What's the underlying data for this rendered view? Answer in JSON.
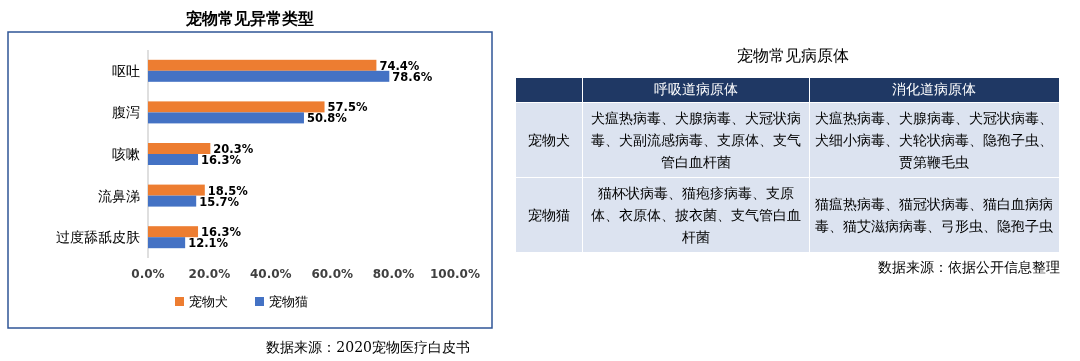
{
  "chart_data": [
    {
      "type": "bar",
      "orientation": "horizontal",
      "title": "宠物常见异常类型",
      "categories": [
        "呕吐",
        "腹泻",
        "咳嗽",
        "流鼻涕",
        "过度舔舐皮肤"
      ],
      "series": [
        {
          "name": "宠物犬",
          "color": "#ed7d31",
          "values": [
            74.4,
            57.5,
            20.3,
            18.5,
            16.3
          ],
          "value_labels": [
            "74.4%",
            "57.5%",
            "20.3%",
            "18.5%",
            "16.3%"
          ]
        },
        {
          "name": "宠物猫",
          "color": "#4472c4",
          "values": [
            78.6,
            50.8,
            16.3,
            15.7,
            12.1
          ],
          "value_labels": [
            "78.6%",
            "50.8%",
            "16.3%",
            "15.7%",
            "12.1%"
          ]
        }
      ],
      "xlim": [
        0,
        100
      ],
      "xticks": [
        {
          "value": 0,
          "label": "0.0%"
        },
        {
          "value": 20,
          "label": "20.0%"
        },
        {
          "value": 40,
          "label": "40.0%"
        },
        {
          "value": 60,
          "label": "60.0%"
        },
        {
          "value": 80,
          "label": "80.0%"
        },
        {
          "value": 100,
          "label": "100.0%"
        }
      ],
      "legend": "bottom",
      "annotations": [
        "数据来源：2020宠物医疗白皮书"
      ]
    },
    {
      "type": "other",
      "title": "宠物常见病原体",
      "categories": [
        "呼吸道病原体",
        "消化道病原体"
      ],
      "y_categories": [
        "宠物犬",
        "宠物猫"
      ],
      "cell_labels": [
        [
          "犬瘟热病毒、犬腺病毒、犬冠状病毒、犬副流感病毒、支原体、支气管白血杆菌",
          "犬瘟热病毒、犬腺病毒、犬冠状病毒、犬细小病毒、犬轮状病毒、隐孢子虫、贾第鞭毛虫"
        ],
        [
          "猫杯状病毒、猫疱疹病毒、支原体、衣原体、披衣菌、支气管白血杆菌",
          "猫瘟热病毒、猫冠状病毒、猫白血病病毒、猫艾滋病病毒、弓形虫、隐孢子虫"
        ]
      ],
      "annotations": [
        "数据来源：依据公开信息整理"
      ]
    }
  ]
}
